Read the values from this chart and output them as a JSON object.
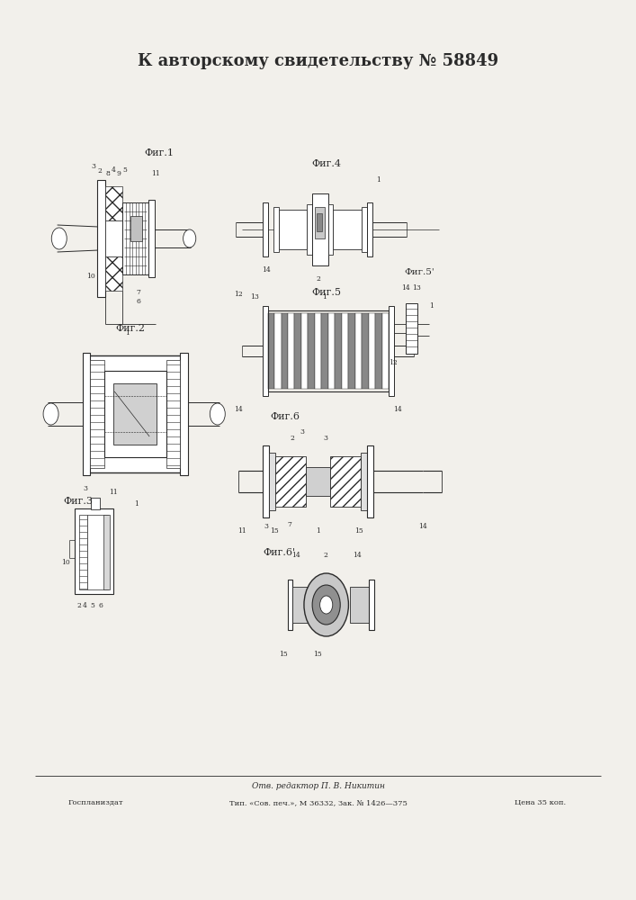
{
  "title": "К авторскому свидетельству № 58849",
  "title_fontsize": 13,
  "background_color": "#f2f0eb",
  "fig_label1": "Фиг.1",
  "fig_label2": "Фиг.2",
  "fig_label3": "Фиг.3",
  "fig_label4": "Фиг.4",
  "fig_label5": "Фиг.5",
  "fig_label5b": "Фиг.5'",
  "fig_label6": "Фиг.6",
  "fig_label6b": "Фиг.6'",
  "footer_line1": "Отв. редактор П. В. Никитин",
  "footer_line2_left": "Госпланиздат",
  "footer_line2_center": "Тип. «Сов. печ.», М 36332, Зак. № 1426—375",
  "footer_line2_right": "Цена 35 коп.",
  "line_color": "#2a2a2a",
  "text_color": "#2a2a2a"
}
